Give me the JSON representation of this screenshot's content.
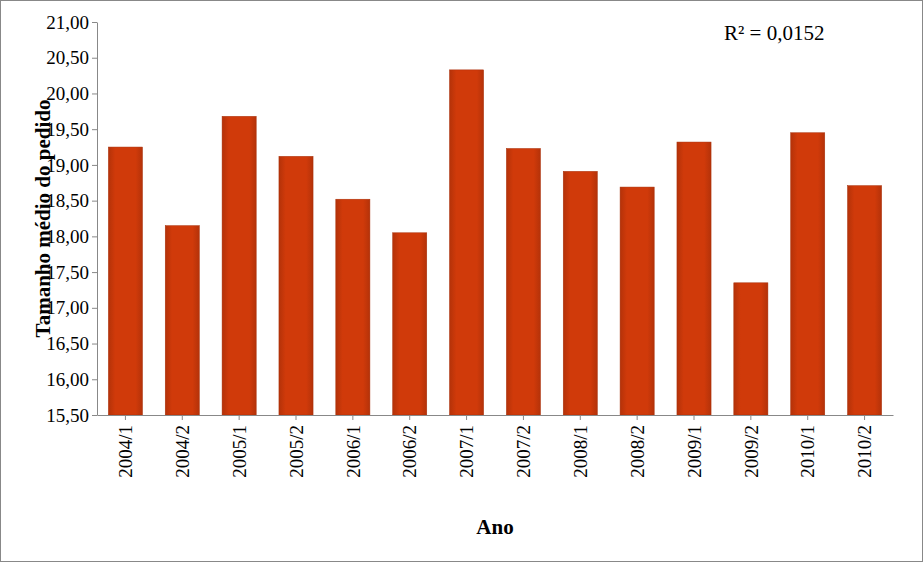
{
  "chart_data": {
    "type": "bar",
    "annotation": "R² = 0,0152",
    "x_label": "Ano",
    "y_label": "Tamanho médio do pedido",
    "categories": [
      "2004/1",
      "2004/2",
      "2005/1",
      "2005/2",
      "2006/1",
      "2006/2",
      "2007/1",
      "2007/2",
      "2008/1",
      "2008/2",
      "2009/1",
      "2009/2",
      "2010/1",
      "2010/2"
    ],
    "values": [
      19.25,
      18.15,
      19.68,
      19.12,
      18.52,
      18.05,
      20.33,
      19.23,
      18.91,
      18.69,
      19.32,
      17.35,
      19.45,
      18.71
    ],
    "color": "#d03a0a",
    "ylim": [
      15.5,
      21.0
    ],
    "yticks": [
      {
        "value": 15.5,
        "label": "15,50"
      },
      {
        "value": 16.0,
        "label": "16,00"
      },
      {
        "value": 16.5,
        "label": "16,50"
      },
      {
        "value": 17.0,
        "label": "17,00"
      },
      {
        "value": 17.5,
        "label": "17,50"
      },
      {
        "value": 18.0,
        "label": "18,00"
      },
      {
        "value": 18.5,
        "label": "18,50"
      },
      {
        "value": 19.0,
        "label": "19,00"
      },
      {
        "value": 19.5,
        "label": "19,50"
      },
      {
        "value": 20.0,
        "label": "20,00"
      },
      {
        "value": 20.5,
        "label": "20,50"
      },
      {
        "value": 21.0,
        "label": "21,00"
      }
    ],
    "grid": false
  }
}
